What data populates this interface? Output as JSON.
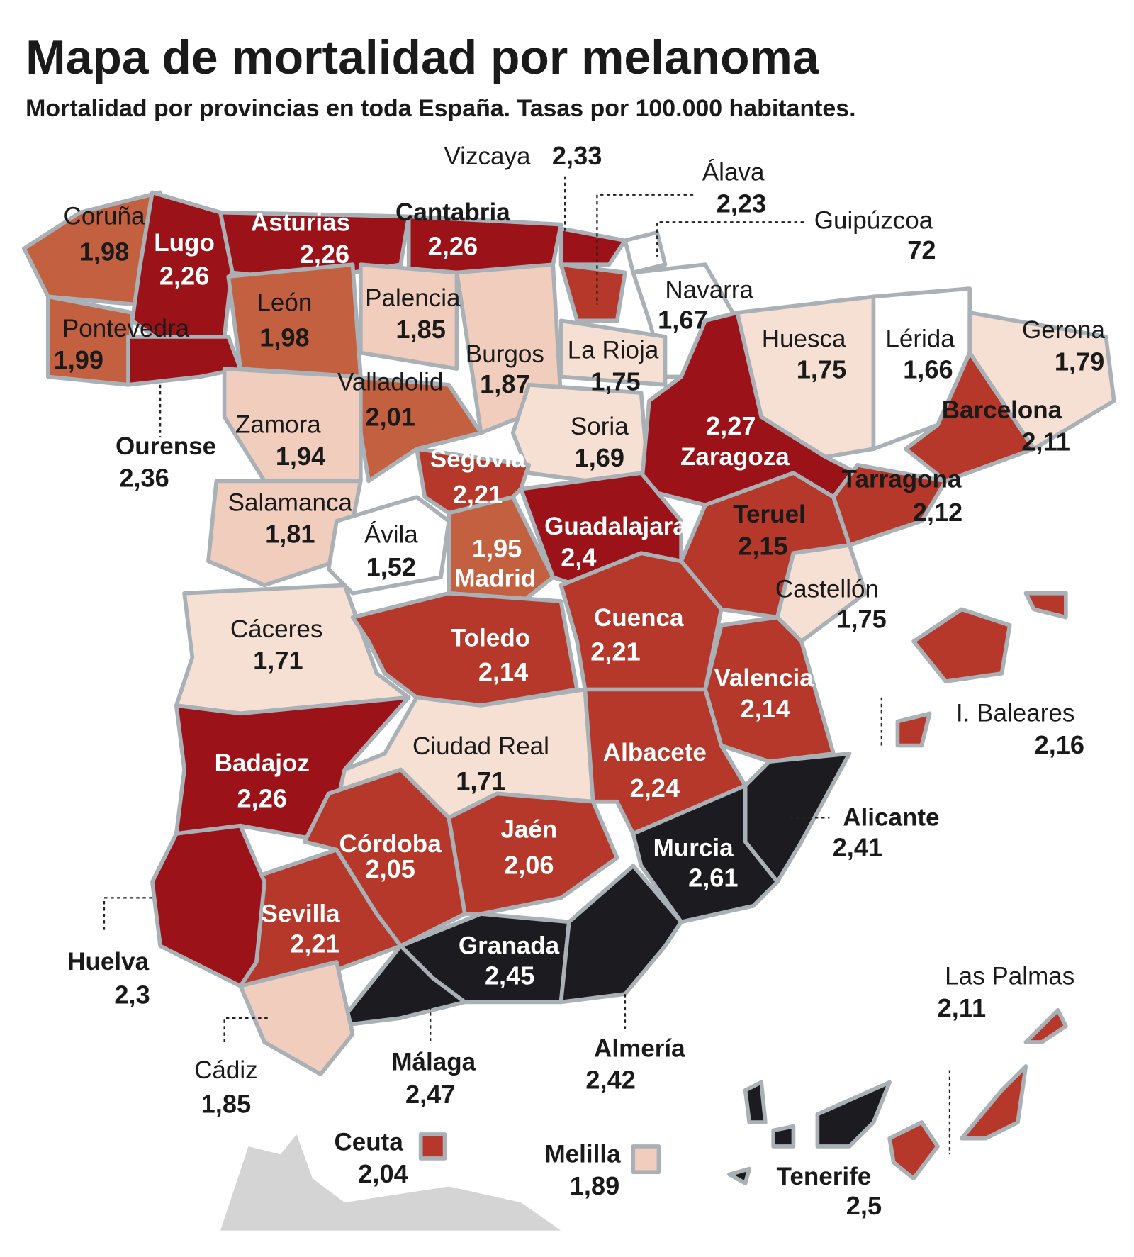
{
  "header": {
    "title": "Mapa de mortalidad por melanoma",
    "subtitle": "Mortalidad por provincias en toda España. Tasas por 100.000 habitantes."
  },
  "colors": {
    "very_high": "#1c1b20",
    "high": "#9b1219",
    "medium": "#b5382a",
    "medium_light": "#c2603f",
    "low": "#f1cdbd",
    "very_low": "#f6e0d4",
    "lowest": "#ffffff",
    "border": "#a9b1b6",
    "africa": "#d4d4d4"
  },
  "provinces": [
    {
      "name": "Coruña",
      "value": "1,98",
      "level": "medium_light"
    },
    {
      "name": "Lugo",
      "value": "2,26",
      "level": "high"
    },
    {
      "name": "Asturias",
      "value": "2,26",
      "level": "high"
    },
    {
      "name": "Cantabria",
      "value": "2,26",
      "level": "high"
    },
    {
      "name": "Vizcaya",
      "value": "2,33",
      "level": "high"
    },
    {
      "name": "Álava",
      "value": "2,23",
      "level": "medium"
    },
    {
      "name": "Guipúzcoa",
      "value": "72",
      "level": "lowest"
    },
    {
      "name": "Navarra",
      "value": "1,67",
      "level": "lowest"
    },
    {
      "name": "Pontevedra",
      "value": "1,99",
      "level": "medium_light"
    },
    {
      "name": "León",
      "value": "1,98",
      "level": "medium_light"
    },
    {
      "name": "Palencia",
      "value": "1,85",
      "level": "low"
    },
    {
      "name": "Burgos",
      "value": "1,87",
      "level": "low"
    },
    {
      "name": "La Rioja",
      "value": "1,75",
      "level": "very_low"
    },
    {
      "name": "Huesca",
      "value": "1,75",
      "level": "very_low"
    },
    {
      "name": "Lérida",
      "value": "1,66",
      "level": "lowest"
    },
    {
      "name": "Gerona",
      "value": "1,79",
      "level": "very_low"
    },
    {
      "name": "Valladolid",
      "value": "2,01",
      "level": "medium_light"
    },
    {
      "name": "Ourense",
      "value": "2,36",
      "level": "high"
    },
    {
      "name": "Zamora",
      "value": "1,94",
      "level": "low"
    },
    {
      "name": "Soria",
      "value": "1,69",
      "level": "very_low"
    },
    {
      "name": "Barcelona",
      "value": "2,11",
      "level": "medium"
    },
    {
      "name": "Zaragoza",
      "value": "2,27",
      "level": "high"
    },
    {
      "name": "Segovia",
      "value": "2,21",
      "level": "medium"
    },
    {
      "name": "Tarragona",
      "value": "2,12",
      "level": "medium"
    },
    {
      "name": "Salamanca",
      "value": "1,81",
      "level": "low"
    },
    {
      "name": "Ávila",
      "value": "1,52",
      "level": "lowest"
    },
    {
      "name": "Guadalajara",
      "value": "2,4",
      "level": "high"
    },
    {
      "name": "Teruel",
      "value": "2,15",
      "level": "medium"
    },
    {
      "name": "Madrid",
      "value": "1,95",
      "level": "medium_light"
    },
    {
      "name": "Castellón",
      "value": "1,75",
      "level": "very_low"
    },
    {
      "name": "Cáceres",
      "value": "1,71",
      "level": "very_low"
    },
    {
      "name": "Cuenca",
      "value": "2,21",
      "level": "medium"
    },
    {
      "name": "Toledo",
      "value": "2,14",
      "level": "medium"
    },
    {
      "name": "Valencia",
      "value": "2,14",
      "level": "medium"
    },
    {
      "name": "I. Baleares",
      "value": "2,16",
      "level": "medium"
    },
    {
      "name": "Ciudad Real",
      "value": "1,71",
      "level": "very_low"
    },
    {
      "name": "Albacete",
      "value": "2,24",
      "level": "medium"
    },
    {
      "name": "Badajoz",
      "value": "2,26",
      "level": "high"
    },
    {
      "name": "Alicante",
      "value": "2,41",
      "level": "very_high"
    },
    {
      "name": "Jaén",
      "value": "2,06",
      "level": "medium"
    },
    {
      "name": "Córdoba",
      "value": "2,05",
      "level": "medium"
    },
    {
      "name": "Murcia",
      "value": "2,61",
      "level": "very_high"
    },
    {
      "name": "Sevilla",
      "value": "2,21",
      "level": "medium"
    },
    {
      "name": "Granada",
      "value": "2,45",
      "level": "very_high"
    },
    {
      "name": "Huelva",
      "value": "2,3",
      "level": "high"
    },
    {
      "name": "Las Palmas",
      "value": "2,11",
      "level": "medium"
    },
    {
      "name": "Almería",
      "value": "2,42",
      "level": "very_high"
    },
    {
      "name": "Málaga",
      "value": "2,47",
      "level": "very_high"
    },
    {
      "name": "Cádiz",
      "value": "1,85",
      "level": "low"
    },
    {
      "name": "Ceuta",
      "value": "2,04",
      "level": "medium"
    },
    {
      "name": "Melilla",
      "value": "1,89",
      "level": "low"
    },
    {
      "name": "Tenerife",
      "value": "2,5",
      "level": "very_high"
    }
  ]
}
